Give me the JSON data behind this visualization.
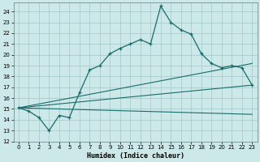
{
  "xlabel": "Humidex (Indice chaleur)",
  "background_color": "#cce8e8",
  "grid_color": "#aacccc",
  "line_color": "#1a6b6b",
  "xlim": [
    -0.5,
    23.5
  ],
  "ylim": [
    12,
    24.8
  ],
  "xticks": [
    0,
    1,
    2,
    3,
    4,
    5,
    6,
    7,
    8,
    9,
    10,
    11,
    12,
    13,
    14,
    15,
    16,
    17,
    18,
    19,
    20,
    21,
    22,
    23
  ],
  "yticks": [
    12,
    13,
    14,
    15,
    16,
    17,
    18,
    19,
    20,
    21,
    22,
    23,
    24
  ],
  "line1_x": [
    0,
    1,
    2,
    3,
    4,
    5,
    6,
    7,
    8,
    9,
    10,
    11,
    12,
    13,
    14,
    15,
    16,
    17,
    18,
    19,
    20,
    21,
    22,
    23
  ],
  "line1_y": [
    15.1,
    14.8,
    14.2,
    13.0,
    14.4,
    14.2,
    16.5,
    18.6,
    19.0,
    20.1,
    20.6,
    21.0,
    21.4,
    21.0,
    24.5,
    23.0,
    22.3,
    21.9,
    20.1,
    19.2,
    18.8,
    19.0,
    18.8,
    17.2
  ],
  "line2_x": [
    0,
    23
  ],
  "line2_y": [
    15.1,
    19.2
  ],
  "line3_x": [
    0,
    23
  ],
  "line3_y": [
    15.1,
    17.2
  ],
  "line4_x": [
    0,
    23
  ],
  "line4_y": [
    15.1,
    14.5
  ],
  "tick_fontsize": 5,
  "xlabel_fontsize": 6
}
